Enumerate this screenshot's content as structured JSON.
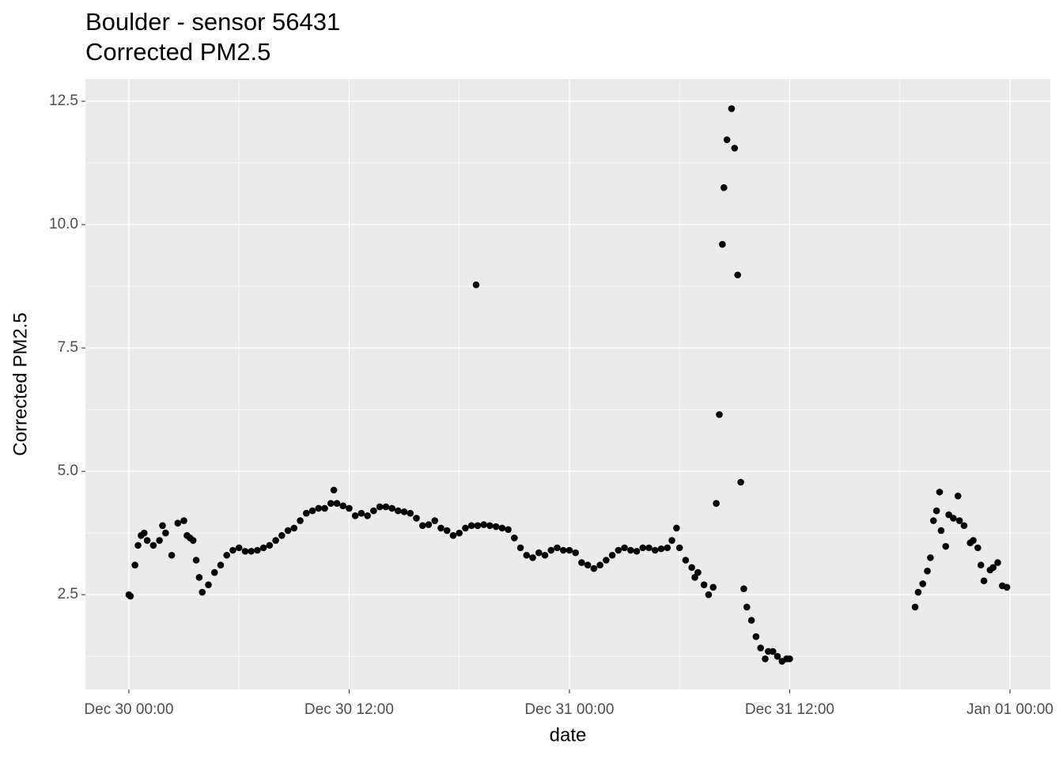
{
  "chart_data": {
    "type": "scatter",
    "title": "Boulder - sensor 56431",
    "subtitle": "Corrected PM2.5",
    "x_label": "date",
    "y_label": "Corrected PM2.5",
    "color": "#000000",
    "grid": true,
    "xlim": [
      "Dec 29 21:38",
      "Jan 01 02:12"
    ],
    "xticks": [
      "Dec 30 00:00",
      "Dec 30 12:00",
      "Dec 31 00:00",
      "Dec 31 12:00",
      "Jan 01 00:00"
    ],
    "ylim": [
      0.58,
      12.95
    ],
    "yticks": [
      2.5,
      {
        "value": 5,
        "label": "5.0"
      },
      7.5,
      {
        "value": 10,
        "label": "10.0"
      },
      12.5
    ],
    "x": [
      "Dec 30 00:00",
      "Dec 30 00:05",
      "Dec 30 00:20",
      "Dec 30 00:30",
      "Dec 30 00:40",
      "Dec 30 00:50",
      "Dec 30 01:00",
      "Dec 30 01:20",
      "Dec 30 01:40",
      "Dec 30 01:50",
      "Dec 30 02:00",
      "Dec 30 02:20",
      "Dec 30 02:40",
      "Dec 30 03:00",
      "Dec 30 03:10",
      "Dec 30 03:20",
      "Dec 30 03:30",
      "Dec 30 03:40",
      "Dec 30 03:50",
      "Dec 30 04:00",
      "Dec 30 04:20",
      "Dec 30 04:40",
      "Dec 30 05:00",
      "Dec 30 05:20",
      "Dec 30 05:40",
      "Dec 30 06:00",
      "Dec 30 06:20",
      "Dec 30 06:40",
      "Dec 30 07:00",
      "Dec 30 07:20",
      "Dec 30 07:40",
      "Dec 30 08:00",
      "Dec 30 08:20",
      "Dec 30 08:40",
      "Dec 30 09:00",
      "Dec 30 09:20",
      "Dec 30 09:40",
      "Dec 30 10:00",
      "Dec 30 10:20",
      "Dec 30 10:40",
      "Dec 30 11:00",
      "Dec 30 11:10",
      "Dec 30 11:20",
      "Dec 30 11:40",
      "Dec 30 12:00",
      "Dec 30 12:20",
      "Dec 30 12:40",
      "Dec 30 13:00",
      "Dec 30 13:20",
      "Dec 30 13:40",
      "Dec 30 14:00",
      "Dec 30 14:20",
      "Dec 30 14:40",
      "Dec 30 15:00",
      "Dec 30 15:20",
      "Dec 30 15:40",
      "Dec 30 16:00",
      "Dec 30 16:20",
      "Dec 30 16:40",
      "Dec 30 17:00",
      "Dec 30 17:20",
      "Dec 30 17:40",
      "Dec 30 18:00",
      "Dec 30 18:20",
      "Dec 30 18:40",
      "Dec 30 18:55",
      "Dec 30 19:00",
      "Dec 30 19:20",
      "Dec 30 19:40",
      "Dec 30 20:00",
      "Dec 30 20:20",
      "Dec 30 20:40",
      "Dec 30 21:00",
      "Dec 30 21:20",
      "Dec 30 21:40",
      "Dec 30 22:00",
      "Dec 30 22:20",
      "Dec 30 22:40",
      "Dec 30 23:00",
      "Dec 30 23:20",
      "Dec 30 23:40",
      "Dec 31 00:00",
      "Dec 31 00:20",
      "Dec 31 00:40",
      "Dec 31 01:00",
      "Dec 31 01:20",
      "Dec 31 01:40",
      "Dec 31 02:00",
      "Dec 31 02:20",
      "Dec 31 02:40",
      "Dec 31 03:00",
      "Dec 31 03:20",
      "Dec 31 03:40",
      "Dec 31 04:00",
      "Dec 31 04:20",
      "Dec 31 04:40",
      "Dec 31 05:00",
      "Dec 31 05:20",
      "Dec 31 05:35",
      "Dec 31 05:50",
      "Dec 31 06:00",
      "Dec 31 06:20",
      "Dec 31 06:40",
      "Dec 31 06:50",
      "Dec 31 07:00",
      "Dec 31 07:20",
      "Dec 31 07:35",
      "Dec 31 07:50",
      "Dec 31 08:00",
      "Dec 31 08:10",
      "Dec 31 08:20",
      "Dec 31 08:25",
      "Dec 31 08:35",
      "Dec 31 08:50",
      "Dec 31 09:00",
      "Dec 31 09:10",
      "Dec 31 09:20",
      "Dec 31 09:30",
      "Dec 31 09:40",
      "Dec 31 09:55",
      "Dec 31 10:10",
      "Dec 31 10:25",
      "Dec 31 10:40",
      "Dec 31 10:50",
      "Dec 31 11:05",
      "Dec 31 11:20",
      "Dec 31 11:35",
      "Dec 31 11:50",
      "Dec 31 12:00",
      "Dec 31 18:50",
      "Dec 31 19:00",
      "Dec 31 19:15",
      "Dec 31 19:30",
      "Dec 31 19:40",
      "Dec 31 19:50",
      "Dec 31 20:00",
      "Dec 31 20:10",
      "Dec 31 20:15",
      "Dec 31 20:30",
      "Dec 31 20:40",
      "Dec 31 20:55",
      "Dec 31 21:10",
      "Dec 31 21:15",
      "Dec 31 21:30",
      "Dec 31 21:50",
      "Dec 31 22:00",
      "Dec 31 22:15",
      "Dec 31 22:25",
      "Dec 31 22:35",
      "Dec 31 22:55",
      "Dec 31 23:05",
      "Dec 31 23:20",
      "Dec 31 23:35",
      "Dec 31 23:50"
    ],
    "values": [
      2.5,
      2.47,
      3.1,
      3.5,
      3.7,
      3.75,
      3.6,
      3.5,
      3.6,
      3.9,
      3.75,
      3.3,
      3.95,
      4.0,
      3.7,
      3.65,
      3.6,
      3.2,
      2.85,
      2.55,
      2.7,
      2.95,
      3.1,
      3.3,
      3.4,
      3.45,
      3.38,
      3.38,
      3.4,
      3.45,
      3.5,
      3.6,
      3.7,
      3.8,
      3.85,
      4.0,
      4.15,
      4.2,
      4.25,
      4.25,
      4.35,
      4.62,
      4.35,
      4.3,
      4.25,
      4.1,
      4.15,
      4.1,
      4.2,
      4.28,
      4.28,
      4.25,
      4.2,
      4.18,
      4.15,
      4.05,
      3.9,
      3.92,
      4.0,
      3.85,
      3.8,
      3.7,
      3.75,
      3.85,
      3.9,
      8.78,
      3.9,
      3.92,
      3.9,
      3.88,
      3.85,
      3.82,
      3.65,
      3.45,
      3.3,
      3.25,
      3.35,
      3.3,
      3.4,
      3.45,
      3.4,
      3.4,
      3.35,
      3.15,
      3.1,
      3.03,
      3.1,
      3.2,
      3.3,
      3.4,
      3.45,
      3.4,
      3.38,
      3.45,
      3.45,
      3.4,
      3.43,
      3.45,
      3.6,
      3.85,
      3.45,
      3.2,
      3.05,
      2.85,
      2.95,
      2.7,
      2.5,
      2.65,
      4.35,
      6.15,
      9.6,
      10.75,
      11.72,
      12.35,
      11.55,
      8.98,
      4.78,
      2.62,
      2.25,
      1.98,
      1.65,
      1.42,
      1.2,
      1.35,
      1.35,
      1.25,
      1.15,
      1.2,
      1.2,
      2.25,
      2.55,
      2.72,
      2.98,
      3.25,
      4.0,
      4.2,
      4.58,
      3.8,
      3.48,
      4.12,
      4.05,
      4.5,
      4.0,
      3.9,
      3.55,
      3.6,
      3.45,
      3.1,
      2.78,
      3.0,
      3.05,
      3.15,
      2.68,
      2.65
    ]
  }
}
